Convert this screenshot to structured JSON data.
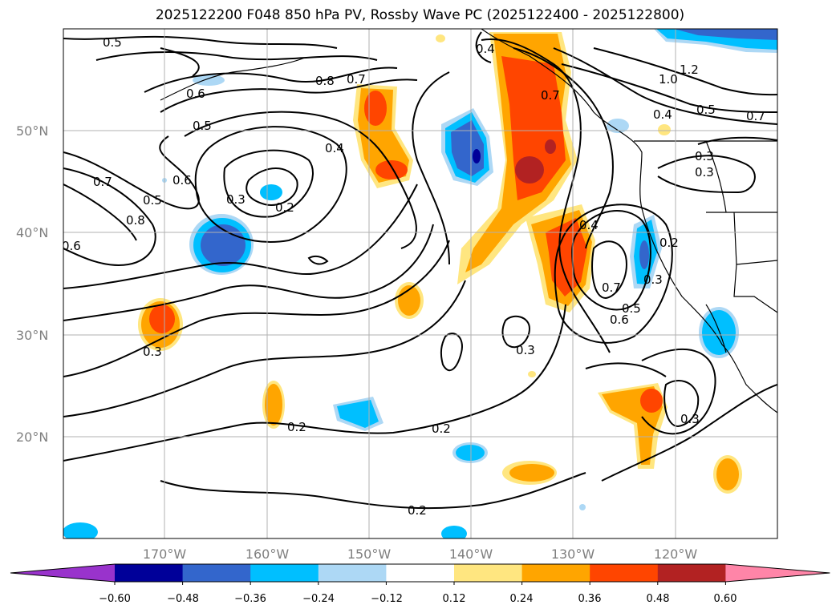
{
  "title": "2025122200 F048 850 hPa PV, Rossby Wave PC (2025122400 - 2025122800)",
  "lat_labels": [
    "50°N",
    "40°N",
    "30°N",
    "20°N"
  ],
  "lon_labels": [
    "170°W",
    "160°W",
    "150°W",
    "140°W",
    "130°W",
    "120°W"
  ],
  "contour_labels": [
    "0.5",
    "0.6",
    "0.5",
    "0.8",
    "0.7",
    "0.4",
    "0.6",
    "0.7",
    "0.5",
    "0.8",
    "0.6",
    "0.3",
    "0.2",
    "0.4",
    "0.3",
    "0.3",
    "0.2",
    "0.2",
    "0.2",
    "0.3",
    "0.4",
    "0.7",
    "0.6",
    "0.5",
    "0.3",
    "0.2",
    "1.0",
    "1.2",
    "0.4",
    "0.5",
    "0.7",
    "0.3",
    "0.7",
    "0.3"
  ],
  "colorbar": {
    "ticks": [
      "−0.60",
      "−0.48",
      "−0.36",
      "−0.24",
      "−0.12",
      "0.12",
      "0.24",
      "0.36",
      "0.48",
      "0.60"
    ],
    "colors": [
      "#9933cc",
      "#000099",
      "#3366cc",
      "#00bfff",
      "#add8f5",
      "#ffffff",
      "#ffe680",
      "#ffa500",
      "#ff4500",
      "#b22222",
      "#ff85a8"
    ]
  },
  "colors": {
    "grid": "#b0b0b0",
    "axis_label": "#7f7f7f"
  }
}
